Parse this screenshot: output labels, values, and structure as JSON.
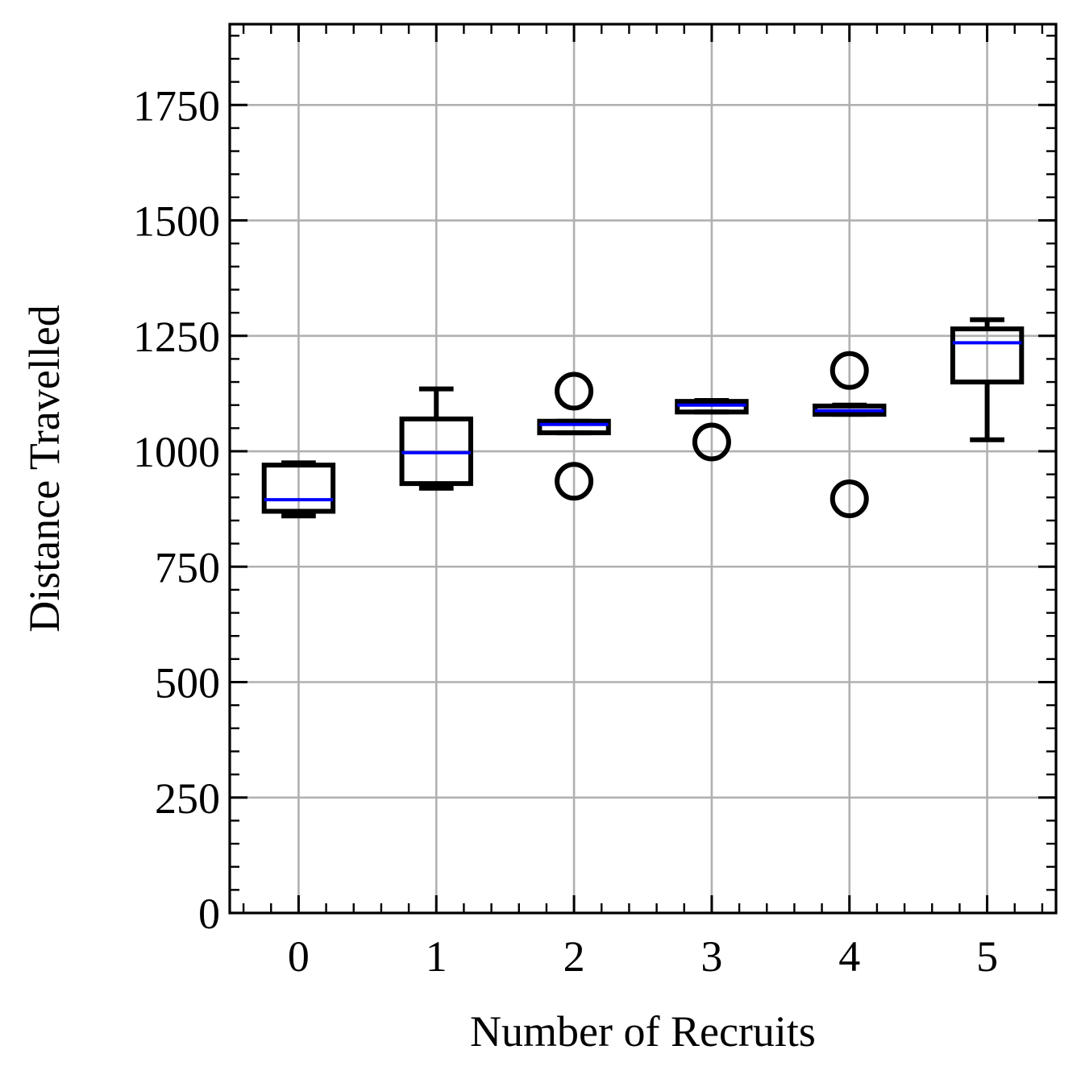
{
  "chart_data": {
    "type": "box",
    "title": "",
    "xlabel": "Number of Recruits",
    "ylabel": "Distance Travelled",
    "ylim": [
      0,
      1925
    ],
    "xlim": [
      -0.5,
      5.5
    ],
    "yticks": [
      0,
      250,
      500,
      750,
      1000,
      1250,
      1500,
      1750
    ],
    "ytick_labels": [
      "0",
      "250",
      "500",
      "750",
      "1000",
      "1250",
      "1500",
      "1750"
    ],
    "grid": true,
    "box_color": "#000000",
    "median_color": "#0000ff",
    "grid_color": "#b0b0b0",
    "boxes": [
      {
        "category": "0",
        "whisker_low": 860,
        "q1": 870,
        "median": 895,
        "q3": 970,
        "whisker_high": 975,
        "outliers": []
      },
      {
        "category": "1",
        "whisker_low": 920,
        "q1": 930,
        "median": 997,
        "q3": 1070,
        "whisker_high": 1135,
        "outliers": []
      },
      {
        "category": "2",
        "whisker_low": 1040,
        "q1": 1040,
        "median": 1058,
        "q3": 1065,
        "whisker_high": 1065,
        "outliers": [
          1130,
          935
        ]
      },
      {
        "category": "3",
        "whisker_low": 1085,
        "q1": 1085,
        "median": 1100,
        "q3": 1108,
        "whisker_high": 1110,
        "outliers": [
          1020
        ]
      },
      {
        "category": "4",
        "whisker_low": 1080,
        "q1": 1080,
        "median": 1088,
        "q3": 1098,
        "whisker_high": 1100,
        "outliers": [
          1175,
          897
        ]
      },
      {
        "category": "5",
        "whisker_low": 1025,
        "q1": 1150,
        "median": 1235,
        "q3": 1265,
        "whisker_high": 1285,
        "outliers": []
      }
    ]
  }
}
